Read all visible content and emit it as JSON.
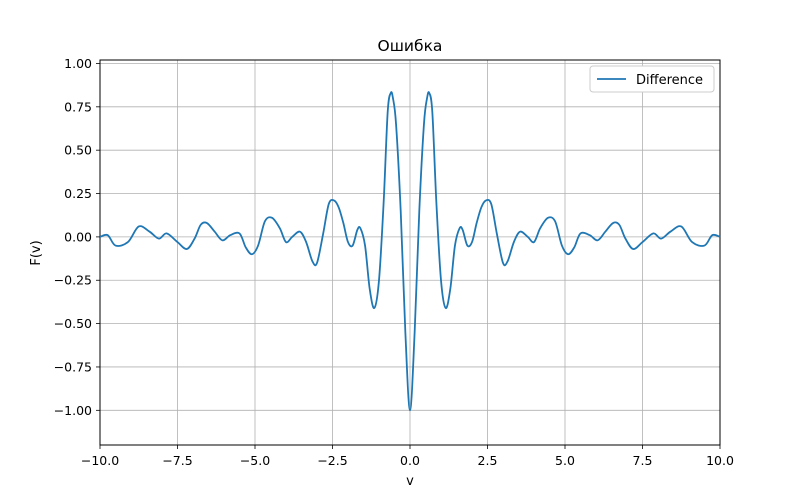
{
  "chart_data": {
    "type": "line",
    "title": "Ошибка",
    "xlabel": "v",
    "ylabel": "F(v)",
    "xlim": [
      -10.0,
      10.0
    ],
    "ylim": [
      -1.2,
      1.02
    ],
    "grid": true,
    "legend_position": "top-right",
    "xticks": [
      -10.0,
      -7.5,
      -5.0,
      -2.5,
      0.0,
      2.5,
      5.0,
      7.5,
      10.0
    ],
    "xtick_labels": [
      "−10.0",
      "−7.5",
      "−5.0",
      "−2.5",
      "0.0",
      "2.5",
      "5.0",
      "7.5",
      "10.0"
    ],
    "yticks": [
      -1.0,
      -0.75,
      -0.5,
      -0.25,
      0.0,
      0.25,
      0.5,
      0.75,
      1.0
    ],
    "ytick_labels": [
      "−1.00",
      "−0.75",
      "−0.50",
      "−0.25",
      "0.00",
      "0.25",
      "0.50",
      "0.75",
      "1.00"
    ],
    "series": [
      {
        "name": "Difference",
        "color": "#1f77b4",
        "x": [
          0,
          0.15,
          0.3,
          0.45,
          0.55,
          0.62,
          0.72,
          0.85,
          1.0,
          1.15,
          1.3,
          1.45,
          1.6,
          1.7,
          1.85,
          2.0,
          2.15,
          2.3,
          2.45,
          2.62,
          2.8,
          3.0,
          3.15,
          3.35,
          3.55,
          3.8,
          4.0,
          4.2,
          4.45,
          4.68,
          4.9,
          5.1,
          5.3,
          5.5,
          5.8,
          6.05,
          6.3,
          6.55,
          6.75,
          6.95,
          7.2,
          7.5,
          7.85,
          8.1,
          8.4,
          8.75,
          9.1,
          9.5,
          9.75,
          10.0
        ],
        "y": [
          -1.0,
          -0.55,
          0.15,
          0.65,
          0.8,
          0.83,
          0.72,
          0.2,
          -0.25,
          -0.41,
          -0.3,
          -0.05,
          0.05,
          0.04,
          -0.05,
          -0.03,
          0.08,
          0.17,
          0.21,
          0.19,
          0.02,
          -0.15,
          -0.14,
          -0.03,
          0.03,
          0.0,
          -0.03,
          0.05,
          0.11,
          0.09,
          -0.05,
          -0.1,
          -0.06,
          0.02,
          0.01,
          -0.02,
          0.03,
          0.08,
          0.07,
          -0.01,
          -0.07,
          -0.03,
          0.02,
          -0.01,
          0.03,
          0.06,
          -0.03,
          -0.05,
          0.01,
          0.0
        ],
        "symmetric_about_x0": true
      }
    ]
  }
}
